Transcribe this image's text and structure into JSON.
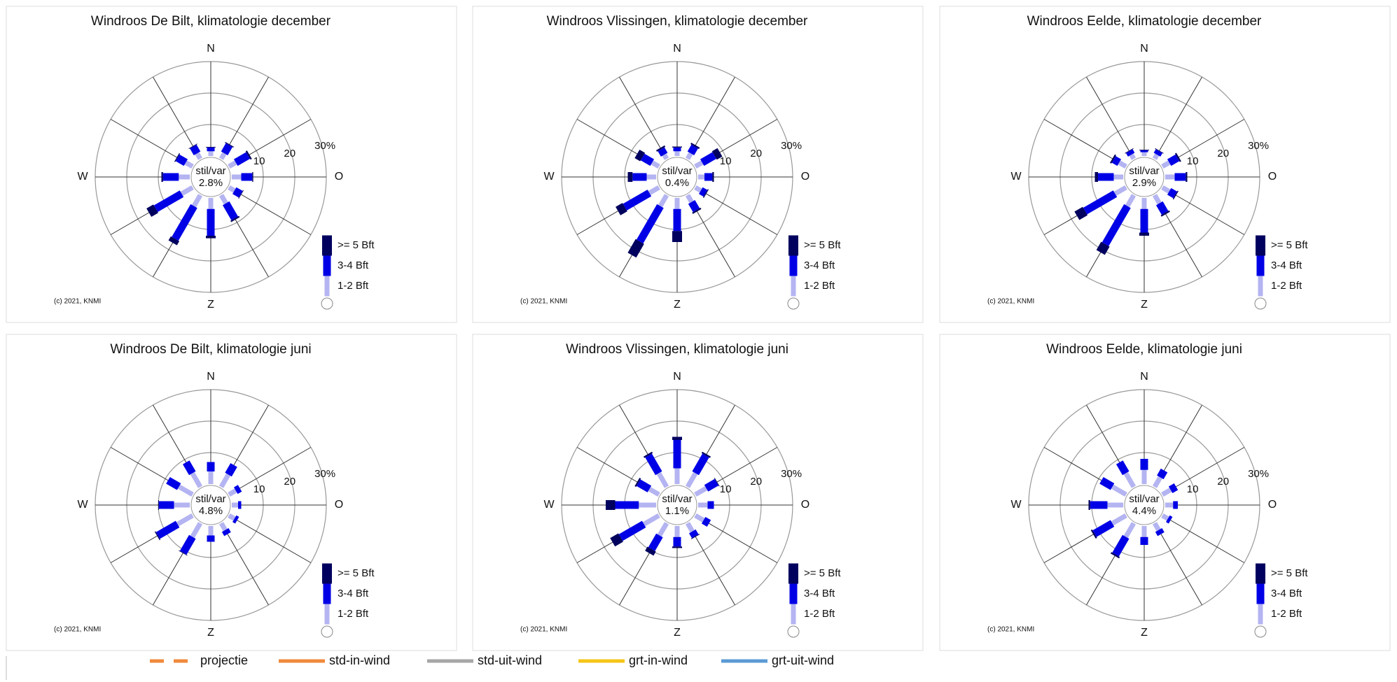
{
  "chart_data": [
    {
      "type": "windrose",
      "title": "Windroos De Bilt, klimatologie december",
      "categories": [
        "N",
        null,
        null,
        "O",
        null,
        null,
        "Z",
        null,
        null,
        "W",
        null,
        null
      ],
      "series": [
        {
          "name": "1-2 Bft",
          "color": "#b4b4f2",
          "values": [
            1.5,
            2,
            2.5,
            3,
            2,
            3,
            3.5,
            4,
            4,
            3.5,
            2.5,
            2
          ]
        },
        {
          "name": "3-4 Bft",
          "color": "#0000e6",
          "values": [
            1.2,
            3,
            4.5,
            3.5,
            2.3,
            5.5,
            8.5,
            12,
            9.5,
            5,
            3,
            2.5
          ]
        },
        {
          "name": ">= 5 Bft",
          "color": "#00005e",
          "values": [
            0.2,
            0.3,
            0.5,
            0.3,
            0.2,
            0.5,
            0.8,
            1.5,
            2.5,
            0.5,
            0.3,
            0.2
          ]
        }
      ],
      "calm_label": "stil/var",
      "calm_value": 2.8,
      "calm_value_label": "2.8%",
      "rlim": [
        0,
        30
      ],
      "rticks": [
        10,
        20,
        {
          "value": 30,
          "label": "30%"
        }
      ],
      "credit": "(c) 2021, KNMI"
    },
    {
      "type": "windrose",
      "title": "Windroos Vlissingen, klimatologie december",
      "categories": [
        "N",
        null,
        null,
        "O",
        null,
        null,
        "Z",
        null,
        null,
        "W",
        null,
        null
      ],
      "series": [
        {
          "name": "1-2 Bft",
          "color": "#b4b4f2",
          "values": [
            1.5,
            2,
            2.5,
            2,
            2,
            2.5,
            3.5,
            4,
            3.5,
            3,
            2.5,
            1.5
          ]
        },
        {
          "name": "3-4 Bft",
          "color": "#0000e6",
          "values": [
            1.2,
            2.5,
            4.5,
            2.5,
            1.7,
            3,
            7,
            13,
            9,
            4.5,
            3.5,
            2
          ]
        },
        {
          "name": ">= 5 Bft",
          "color": "#00005e",
          "values": [
            0.3,
            0.5,
            2,
            0.5,
            0.3,
            0.5,
            3.5,
            5,
            2.5,
            1.5,
            2,
            0.5
          ]
        }
      ],
      "calm_label": "stil/var",
      "calm_value": 0.4,
      "calm_value_label": "0.4%",
      "rlim": [
        0,
        30
      ],
      "rticks": [
        10,
        20,
        {
          "value": 30,
          "label": "30%"
        }
      ],
      "credit": "(c) 2021, KNMI"
    },
    {
      "type": "windrose",
      "title": "Windroos Eelde, klimatologie december",
      "categories": [
        "N",
        null,
        null,
        "O",
        null,
        null,
        "Z",
        null,
        null,
        "W",
        null,
        null
      ],
      "series": [
        {
          "name": "1-2 Bft",
          "color": "#b4b4f2",
          "values": [
            1.2,
            1.5,
            2.5,
            3,
            2.5,
            3,
            3.5,
            4,
            4,
            3,
            2.5,
            1.5
          ]
        },
        {
          "name": "3-4 Bft",
          "color": "#0000e6",
          "values": [
            0.6,
            1.3,
            3,
            3.5,
            2.2,
            3.5,
            7.5,
            14,
            11,
            5,
            2,
            1.3
          ]
        },
        {
          "name": ">= 5 Bft",
          "color": "#00005e",
          "values": [
            0.2,
            0.2,
            0.5,
            0.5,
            0.3,
            0.5,
            1,
            3,
            3,
            1,
            0.5,
            0.2
          ]
        }
      ],
      "calm_label": "stil/var",
      "calm_value": 2.9,
      "calm_value_label": "2.9%",
      "rlim": [
        0,
        30
      ],
      "rticks": [
        10,
        20,
        {
          "value": 30,
          "label": "30%"
        }
      ],
      "credit": "(c) 2021, KNMI"
    },
    {
      "type": "windrose",
      "title": "Windroos De Bilt, klimatologie juni",
      "categories": [
        "N",
        null,
        null,
        "O",
        null,
        null,
        "Z",
        null,
        null,
        "W",
        null,
        null
      ],
      "series": [
        {
          "name": "1-2 Bft",
          "color": "#b4b4f2",
          "values": [
            4,
            4.5,
            2.5,
            2,
            2,
            2.5,
            3,
            5,
            5.5,
            5,
            5,
            5
          ]
        },
        {
          "name": "3-4 Bft",
          "color": "#0000e6",
          "values": [
            3,
            3.5,
            1.5,
            1,
            1,
            1.5,
            2,
            5.8,
            7.2,
            4.8,
            4,
            4
          ]
        },
        {
          "name": ">= 5 Bft",
          "color": "#00005e",
          "values": [
            0,
            0,
            0,
            0,
            0,
            0,
            0,
            0.2,
            0.3,
            0.2,
            0,
            0
          ]
        }
      ],
      "calm_label": "stil/var",
      "calm_value": 4.8,
      "calm_value_label": "4.8%",
      "rlim": [
        0,
        30
      ],
      "rticks": [
        10,
        20,
        {
          "value": 30,
          "label": "30%"
        }
      ],
      "credit": "(c) 2021, KNMI"
    },
    {
      "type": "windrose",
      "title": "Windroos Vlissingen, klimatologie juni",
      "categories": [
        "N",
        null,
        null,
        "O",
        null,
        null,
        "Z",
        null,
        null,
        "W",
        null,
        null
      ],
      "series": [
        {
          "name": "1-2 Bft",
          "color": "#b4b4f2",
          "values": [
            5,
            5,
            4,
            3,
            3,
            3,
            3.5,
            4.5,
            5.5,
            5.5,
            3.5,
            5
          ]
        },
        {
          "name": "3-4 Bft",
          "color": "#0000e6",
          "values": [
            9,
            6.5,
            3.8,
            2,
            2,
            1.8,
            3,
            5,
            8.5,
            7.5,
            4,
            6.5
          ]
        },
        {
          "name": ">= 5 Bft",
          "color": "#00005e",
          "values": [
            1,
            0.5,
            0.2,
            0,
            0,
            0.2,
            0.5,
            1.5,
            3,
            3,
            0.5,
            0.5
          ]
        }
      ],
      "calm_label": "stil/var",
      "calm_value": 1.1,
      "calm_value_label": "1.1%",
      "rlim": [
        0,
        30
      ],
      "rticks": [
        10,
        20,
        {
          "value": 30,
          "label": "30%"
        }
      ],
      "credit": "(c) 2021, KNMI"
    },
    {
      "type": "windrose",
      "title": "Windroos Eelde, klimatologie juni",
      "categories": [
        "N",
        null,
        null,
        "O",
        null,
        null,
        "Z",
        null,
        null,
        "W",
        null,
        null
      ],
      "series": [
        {
          "name": "1-2 Bft",
          "color": "#b4b4f2",
          "values": [
            4.5,
            3.5,
            3,
            2.5,
            2,
            2.5,
            3.5,
            5,
            5,
            5,
            5,
            5
          ]
        },
        {
          "name": "3-4 Bft",
          "color": "#0000e6",
          "values": [
            3.5,
            2.5,
            2,
            1.5,
            1,
            1.5,
            2.5,
            6.5,
            6.5,
            5.5,
            4,
            4
          ]
        },
        {
          "name": ">= 5 Bft",
          "color": "#00005e",
          "values": [
            0,
            0,
            0,
            0,
            0,
            0,
            0,
            0.5,
            0.5,
            0.5,
            0,
            0
          ]
        }
      ],
      "calm_label": "stil/var",
      "calm_value": 4.4,
      "calm_value_label": "4.4%",
      "rlim": [
        0,
        30
      ],
      "rticks": [
        10,
        20,
        {
          "value": 30,
          "label": "30%"
        }
      ],
      "credit": "(c) 2021, KNMI"
    }
  ],
  "line_legend": [
    {
      "name": "projectie",
      "color": "#f08a3c",
      "dashed": true
    },
    {
      "name": "std-in-wind",
      "color": "#f08a3c",
      "dashed": false
    },
    {
      "name": "std-uit-wind",
      "color": "#a6a6a6",
      "dashed": false
    },
    {
      "name": "grt-in-wind",
      "color": "#f5c518",
      "dashed": false
    },
    {
      "name": "grt-uit-wind",
      "color": "#5b9bd5",
      "dashed": false
    }
  ]
}
